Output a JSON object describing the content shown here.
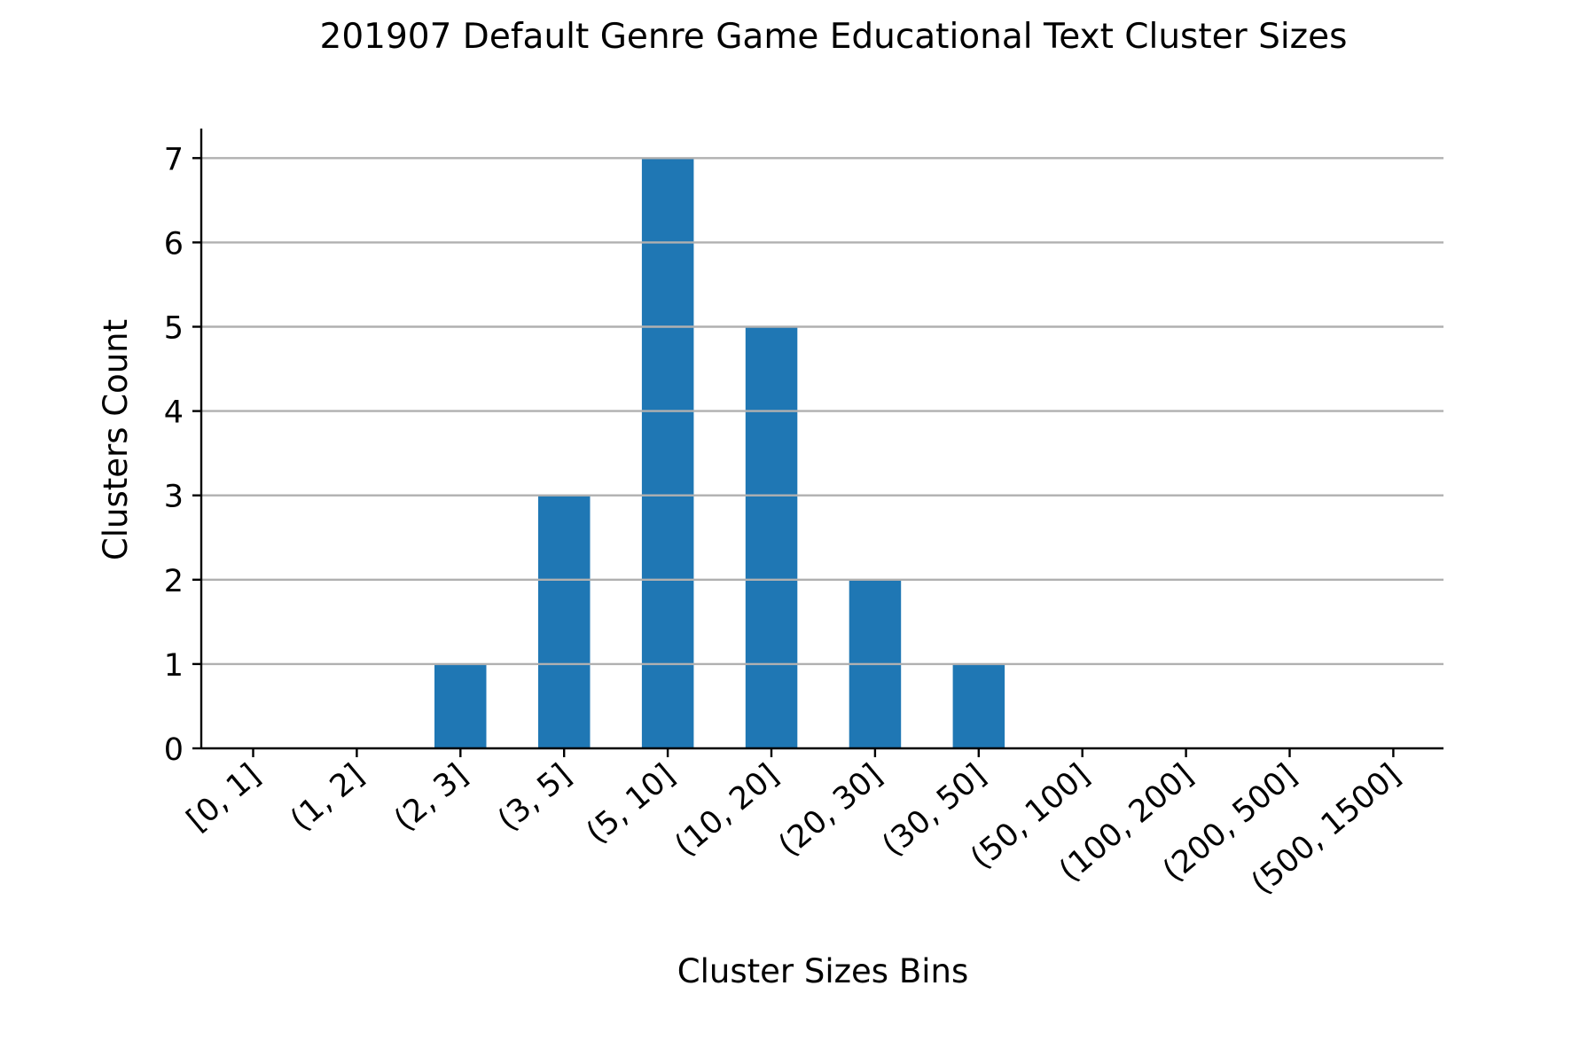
{
  "chart_data": {
    "type": "bar",
    "title": "201907 Default Genre Game Educational Text Cluster Sizes",
    "xlabel": "Cluster Sizes Bins",
    "ylabel": "Clusters Count",
    "categories": [
      "[0, 1]",
      "(1, 2]",
      "(2, 3]",
      "(3, 5]",
      "(5, 10]",
      "(10, 20]",
      "(20, 30]",
      "(30, 50]",
      "(50, 100]",
      "(100, 200]",
      "(200, 500]",
      "(500, 1500]"
    ],
    "values": [
      0,
      0,
      1,
      3,
      7,
      5,
      2,
      1,
      0,
      0,
      0,
      0
    ],
    "ylim": [
      0,
      7.35
    ],
    "yticks": [
      0,
      1,
      2,
      3,
      4,
      5,
      6,
      7
    ],
    "grid": "y",
    "bar_color": "#1f77b4",
    "grid_color": "#b0b0b0"
  }
}
